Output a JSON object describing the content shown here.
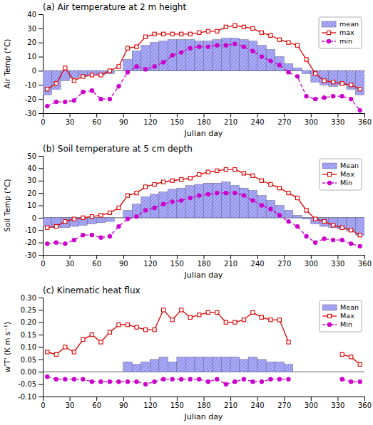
{
  "chart_data": [
    {
      "type": "bar",
      "title": "(a) Air temperature at 2 m height",
      "x_label": "Julian day",
      "y_label": "Air Temp (°C)",
      "xlim": [
        0,
        360
      ],
      "xticks": [
        0,
        30,
        60,
        90,
        120,
        150,
        180,
        210,
        240,
        270,
        300,
        330,
        360
      ],
      "ylim": [
        -30,
        40
      ],
      "yticks": [
        -30,
        -20,
        -10,
        0,
        10,
        20,
        30,
        40
      ],
      "grid": false,
      "legend": "upper right",
      "series": [
        {
          "name": "mean",
          "type": "bar",
          "color": "#aaaaff",
          "bins": [
            0,
            10,
            20,
            30,
            40,
            50,
            60,
            70,
            80,
            90,
            100,
            110,
            120,
            130,
            140,
            150,
            160,
            170,
            180,
            190,
            200,
            210,
            220,
            230,
            240,
            250,
            260,
            270,
            280,
            290,
            300,
            310,
            320,
            330,
            340,
            350,
            360
          ],
          "values": [
            -17,
            -13,
            -7,
            -5,
            -4,
            -3,
            -3,
            -2,
            0,
            8,
            14,
            18,
            20,
            21,
            22,
            22,
            22,
            21,
            21,
            22,
            23,
            23,
            22,
            21,
            18,
            15,
            10,
            5,
            2,
            -2,
            -8,
            -10,
            -11,
            -10,
            -13,
            -17
          ]
        },
        {
          "name": "max",
          "type": "line",
          "color": "#dd0000",
          "marker": "square",
          "line_style": "solid",
          "x": [
            5,
            15,
            25,
            35,
            45,
            55,
            65,
            75,
            85,
            95,
            105,
            115,
            125,
            135,
            145,
            155,
            165,
            175,
            185,
            195,
            205,
            215,
            225,
            235,
            245,
            255,
            265,
            275,
            285,
            295,
            305,
            315,
            325,
            335,
            345,
            355
          ],
          "values": [
            -13,
            -9,
            2,
            -7,
            -4,
            -3,
            -3,
            0,
            3,
            16,
            17,
            24,
            26,
            26,
            26,
            26,
            26,
            27,
            28,
            28,
            31,
            32,
            31,
            30,
            27,
            25,
            22,
            20,
            18,
            8,
            -2,
            -7,
            -8,
            -9,
            -10,
            -13
          ]
        },
        {
          "name": "min",
          "type": "line",
          "color": "#cc00cc",
          "marker": "circle",
          "line_style": "dashed",
          "x": [
            5,
            15,
            25,
            35,
            45,
            55,
            65,
            75,
            85,
            95,
            105,
            115,
            125,
            135,
            145,
            155,
            165,
            175,
            185,
            195,
            205,
            215,
            225,
            235,
            245,
            255,
            265,
            275,
            285,
            295,
            305,
            315,
            325,
            335,
            345,
            355
          ],
          "values": [
            -25,
            -22,
            -22,
            -21,
            -15,
            -14,
            -20,
            -20,
            -11,
            -1,
            3,
            1,
            3,
            6,
            11,
            13,
            16,
            17,
            17,
            18,
            18,
            19,
            17,
            14,
            10,
            7,
            4,
            -1,
            -4,
            -18,
            -20,
            -19,
            -18,
            -18,
            -20,
            -28
          ]
        }
      ]
    },
    {
      "type": "bar",
      "title": "(b) Soil temperature at 5 cm depth",
      "x_label": "Julian day",
      "y_label": "Soil Temp (°C)",
      "xlim": [
        0,
        360
      ],
      "xticks": [
        0,
        30,
        60,
        90,
        120,
        150,
        180,
        210,
        240,
        270,
        300,
        330,
        360
      ],
      "ylim": [
        -30,
        50
      ],
      "yticks": [
        -30,
        -20,
        -10,
        0,
        10,
        20,
        30,
        40,
        50
      ],
      "grid": false,
      "legend": "upper right",
      "series": [
        {
          "name": "Mean",
          "type": "bar",
          "color": "#aaaaff",
          "bins": [
            0,
            10,
            20,
            30,
            40,
            50,
            60,
            70,
            80,
            90,
            100,
            110,
            120,
            130,
            140,
            150,
            160,
            170,
            180,
            190,
            200,
            210,
            220,
            230,
            240,
            250,
            260,
            270,
            280,
            290,
            300,
            310,
            320,
            330,
            340,
            350,
            360
          ],
          "values": [
            -7,
            -8,
            -8,
            -7,
            -6,
            -5,
            -4,
            -3,
            0,
            6,
            11,
            17,
            19,
            21,
            23,
            24,
            26,
            27,
            28,
            28,
            29,
            26,
            24,
            22,
            18,
            14,
            10,
            6,
            2,
            -1,
            -5,
            -7,
            -8,
            -9,
            -11,
            -14
          ]
        },
        {
          "name": "Max",
          "type": "line",
          "color": "#dd0000",
          "marker": "square",
          "line_style": "solid",
          "x": [
            5,
            15,
            25,
            35,
            45,
            55,
            65,
            75,
            85,
            95,
            105,
            115,
            125,
            135,
            145,
            155,
            165,
            175,
            185,
            195,
            205,
            215,
            225,
            235,
            245,
            255,
            265,
            275,
            285,
            295,
            305,
            315,
            325,
            335,
            345,
            355
          ],
          "values": [
            -8,
            -7,
            -3,
            -1,
            0,
            1,
            2,
            4,
            8,
            18,
            20,
            25,
            27,
            29,
            30,
            31,
            32,
            35,
            37,
            38,
            39,
            39,
            36,
            34,
            30,
            27,
            24,
            20,
            16,
            6,
            -1,
            -3,
            -6,
            -8,
            -10,
            -14
          ]
        },
        {
          "name": "Min",
          "type": "line",
          "color": "#cc00cc",
          "marker": "circle",
          "line_style": "dashed",
          "x": [
            5,
            15,
            25,
            35,
            45,
            55,
            65,
            75,
            85,
            95,
            105,
            115,
            125,
            135,
            145,
            155,
            165,
            175,
            185,
            195,
            205,
            215,
            225,
            235,
            245,
            255,
            265,
            275,
            285,
            295,
            305,
            315,
            325,
            335,
            345,
            355
          ],
          "values": [
            -21,
            -20,
            -21,
            -18,
            -14,
            -14,
            -16,
            -15,
            -7,
            -1,
            1,
            6,
            8,
            11,
            13,
            14,
            16,
            18,
            19,
            20,
            20,
            20,
            18,
            14,
            10,
            7,
            2,
            -3,
            -7,
            -15,
            -20,
            -17,
            -18,
            -18,
            -21,
            -23
          ]
        }
      ]
    },
    {
      "type": "bar",
      "title": "(c) Kinematic heat flux",
      "x_label": "Julian day",
      "y_label": "w'T' (K m s⁻¹)",
      "xlim": [
        0,
        360
      ],
      "xticks": [
        0,
        30,
        60,
        90,
        120,
        150,
        180,
        210,
        240,
        270,
        300,
        330,
        360
      ],
      "ylim": [
        -0.1,
        0.3
      ],
      "yticks": [
        {
          "value": -0.1,
          "label": "-0.10"
        },
        -0.05,
        {
          "value": 0,
          "label": "0.00"
        },
        0.05,
        {
          "value": 0.1,
          "label": "0.10"
        },
        0.15,
        {
          "value": 0.2,
          "label": "0.20"
        },
        0.25,
        {
          "value": 0.3,
          "label": "0.30"
        }
      ],
      "grid": false,
      "legend": "upper right",
      "series": [
        {
          "name": "Mean",
          "type": "bar",
          "color": "#aaaaff",
          "bins": [
            90,
            100,
            110,
            120,
            130,
            140,
            150,
            160,
            170,
            180,
            190,
            200,
            210,
            220,
            230,
            240,
            250,
            260,
            270,
            280
          ],
          "values": [
            0.04,
            0.03,
            0.04,
            0.05,
            0.06,
            0.04,
            0.06,
            0.06,
            0.06,
            0.06,
            0.06,
            0.06,
            0.06,
            0.05,
            0.06,
            0.05,
            0.04,
            0.04,
            0.03
          ]
        },
        {
          "name": "Max",
          "type": "line",
          "color": "#dd0000",
          "marker": "square",
          "line_style": "solid",
          "x": [
            5,
            15,
            25,
            35,
            45,
            55,
            65,
            75,
            85,
            95,
            105,
            115,
            125,
            135,
            145,
            155,
            165,
            175,
            185,
            195,
            205,
            215,
            225,
            235,
            245,
            255,
            265,
            275,
            null,
            335,
            345,
            355
          ],
          "values": [
            0.08,
            0.07,
            0.1,
            0.08,
            0.13,
            0.15,
            0.12,
            0.16,
            0.19,
            0.19,
            0.18,
            0.17,
            0.17,
            0.25,
            0.21,
            0.25,
            0.22,
            0.23,
            0.24,
            0.24,
            0.2,
            0.2,
            0.21,
            0.24,
            0.22,
            0.21,
            0.21,
            0.12,
            null,
            0.07,
            0.06,
            0.03
          ]
        },
        {
          "name": "Min",
          "type": "line",
          "color": "#cc00cc",
          "marker": "circle",
          "line_style": "dashed",
          "x": [
            5,
            15,
            25,
            35,
            45,
            55,
            65,
            75,
            85,
            95,
            105,
            115,
            125,
            135,
            145,
            155,
            165,
            175,
            185,
            195,
            205,
            215,
            225,
            235,
            245,
            255,
            265,
            275,
            null,
            335,
            345,
            355
          ],
          "values": [
            -0.02,
            -0.03,
            -0.03,
            -0.03,
            -0.03,
            -0.04,
            -0.04,
            -0.04,
            -0.04,
            -0.04,
            -0.04,
            -0.05,
            -0.04,
            -0.03,
            -0.03,
            -0.03,
            -0.03,
            -0.03,
            -0.04,
            -0.03,
            -0.05,
            -0.04,
            -0.03,
            -0.04,
            -0.04,
            -0.03,
            -0.03,
            -0.03,
            null,
            -0.03,
            -0.04,
            -0.04
          ]
        }
      ]
    }
  ]
}
